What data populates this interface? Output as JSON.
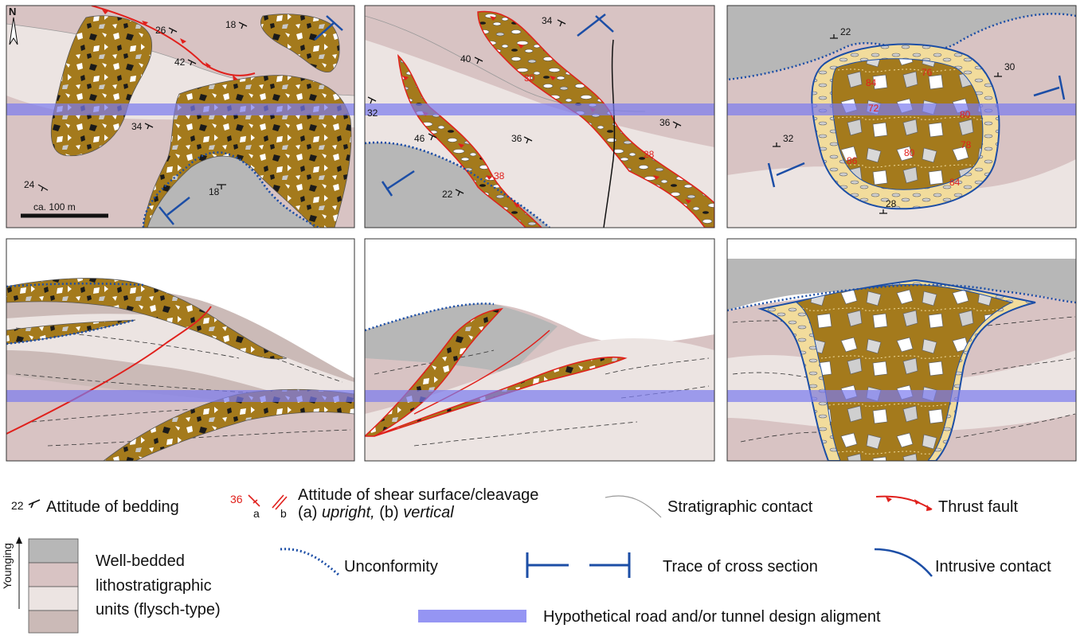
{
  "north_label": "N",
  "scale_label": "ca. 100 m",
  "panel1": {
    "bedding": [
      "26",
      "18",
      "42",
      "34",
      "24",
      "18"
    ]
  },
  "panel2": {
    "bedding": [
      "34",
      "40",
      "32",
      "46",
      "36",
      "36",
      "22"
    ],
    "shear": [
      "30",
      "28",
      "38"
    ]
  },
  "panel3": {
    "bedding": [
      "22",
      "30",
      "32",
      "28"
    ],
    "shear": [
      "84",
      "76",
      "72",
      "80",
      "86",
      "80",
      "78",
      "84"
    ]
  },
  "legend": {
    "bedding_value": "22",
    "bedding_label": "Attitude of bedding",
    "shear_value": "36",
    "shear_a": "a",
    "shear_b": "b",
    "shear_label_line1": "Attitude of shear surface/cleavage",
    "shear_label_line2_a": "(a) ",
    "shear_label_line2_upright": "upright,",
    "shear_label_line2_b": " (b) ",
    "shear_label_line2_vertical": "vertical",
    "strat_label": "Stratigraphic contact",
    "thrust_label": "Thrust fault",
    "younging_label": "Younging",
    "units_line1": "Well-bedded",
    "units_line2": "lithostratigraphic",
    "units_line3": "units (flysch-type)",
    "unconformity_label": "Unconformity",
    "trace_label": "Trace of cross section",
    "intrusive_label": "Intrusive contact",
    "road_label": "Hypothetical road and/or tunnel design aligment"
  },
  "colors": {
    "mud": "#a47a1c",
    "mud_light": "#f2dc9c",
    "rose": "#d8c3c3",
    "cream": "#ece4e2",
    "grey": "#b7b7b7",
    "mauve": "#cbbab7",
    "road": "#7b7bf0",
    "thrust": "#e0201c",
    "intrusive": "#1c4ea6"
  }
}
